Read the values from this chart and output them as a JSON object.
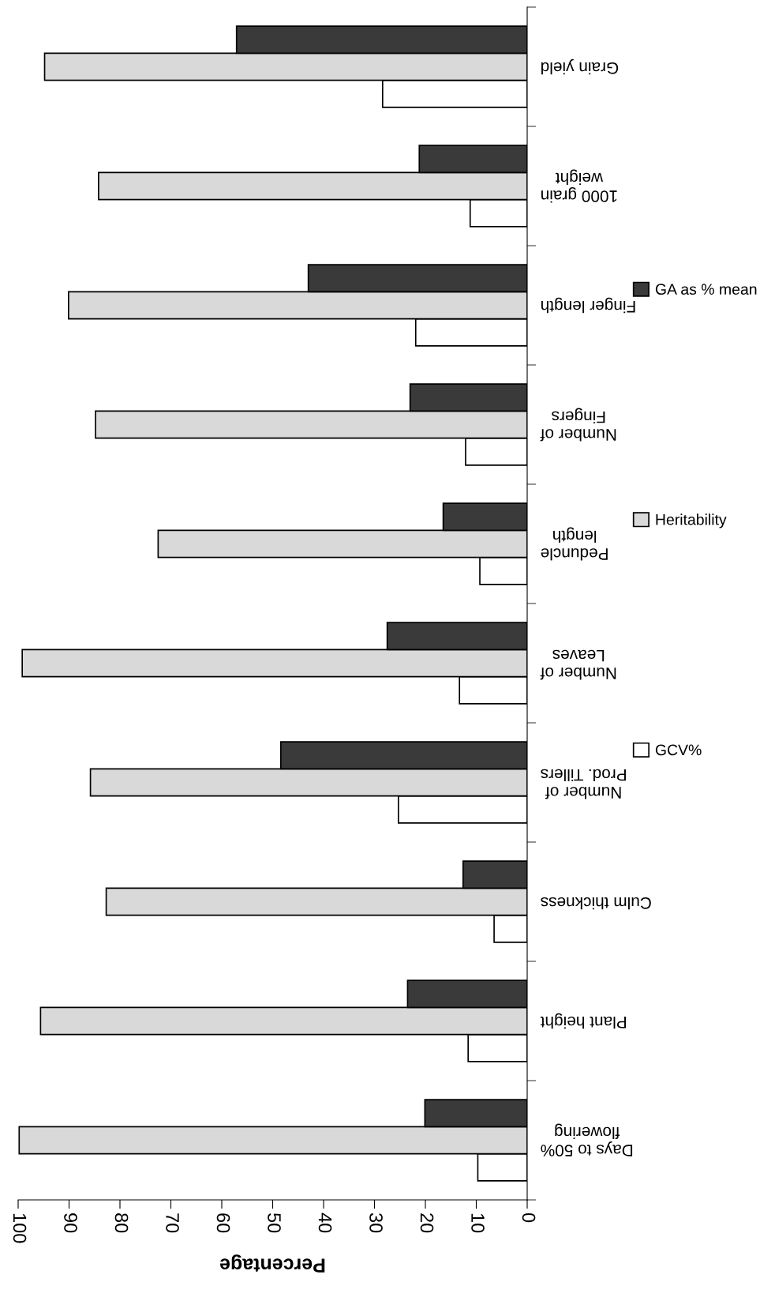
{
  "chart_data": {
    "type": "bar",
    "orientation": "horizontal",
    "xlabel": "Percentage",
    "categories": [
      "Grain yield",
      "1000 grain\nweight",
      "Finger length",
      "Number of\nFingers",
      "Peduncle\nlength",
      "Number of\nLeaves",
      "Number of\nProd. Tillers",
      "Culm thickness",
      "Plant height",
      "Days to 50%\nflowering"
    ],
    "series": [
      {
        "name": "GCV%",
        "color": "#ffffff",
        "values": [
          28.4,
          11.2,
          21.9,
          12.1,
          9.3,
          13.3,
          25.3,
          6.5,
          11.6,
          9.7
        ]
      },
      {
        "name": "Heritability",
        "color": "#d9d9d9",
        "values": [
          94.8,
          84.2,
          90.1,
          84.8,
          72.5,
          99.2,
          85.8,
          82.7,
          95.6,
          99.8
        ]
      },
      {
        "name": "GA as % mean",
        "color": "#3a3a3a",
        "values": [
          57.1,
          21.2,
          43.0,
          23.0,
          16.5,
          27.5,
          48.4,
          12.6,
          23.5,
          20.1
        ]
      }
    ],
    "xlim": [
      100,
      0
    ],
    "xticks": [
      0,
      10,
      20,
      30,
      40,
      50,
      60,
      70,
      80,
      90,
      100
    ],
    "grid": false,
    "legend": "right"
  }
}
